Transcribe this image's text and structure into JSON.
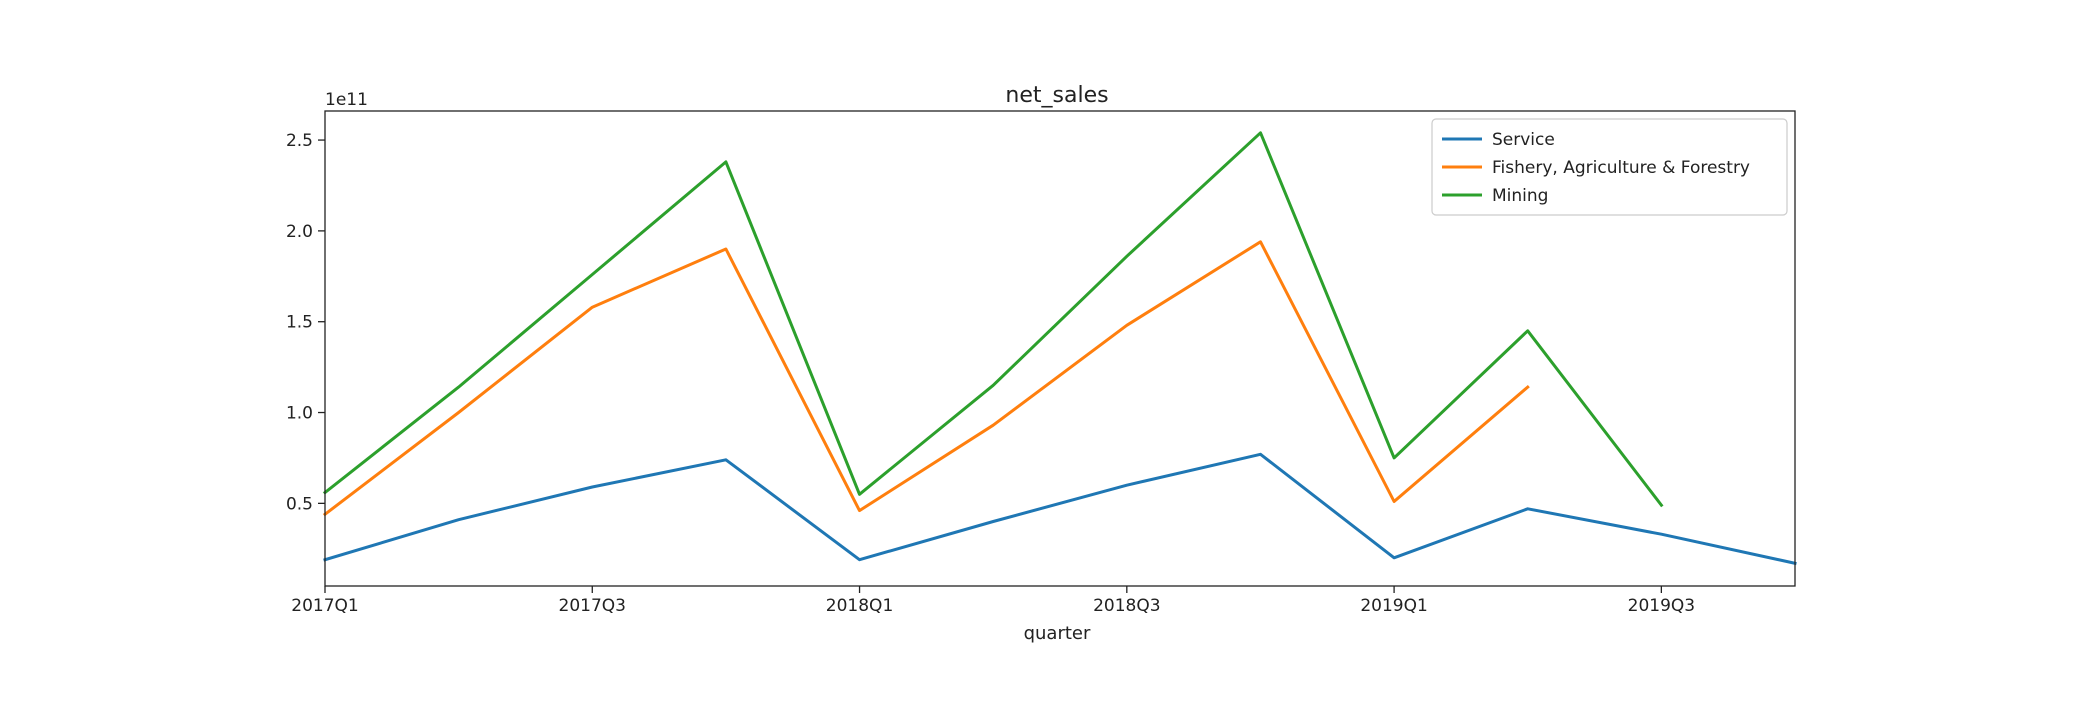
{
  "chart_data": {
    "type": "line",
    "title": "net_sales",
    "xlabel": "quarter",
    "ylabel": "",
    "y_offset_text": "1e11",
    "x": [
      "2017Q1",
      "2017Q2",
      "2017Q3",
      "2017Q4",
      "2018Q1",
      "2018Q2",
      "2018Q3",
      "2018Q4",
      "2019Q1",
      "2019Q2",
      "2019Q3",
      "2019Q4"
    ],
    "x_tick_labels": [
      "2017Q1",
      "2017Q3",
      "2018Q1",
      "2018Q3",
      "2019Q1",
      "2019Q3"
    ],
    "x_tick_index": [
      0,
      2,
      4,
      6,
      8,
      10
    ],
    "ylim": [
      0.045,
      2.66
    ],
    "y_ticks": [
      0.5,
      1.0,
      1.5,
      2.0,
      2.5
    ],
    "y_tick_labels": [
      "0.5",
      "1.0",
      "1.5",
      "2.0",
      "2.5"
    ],
    "legend_position": "top-right",
    "grid": false,
    "series": [
      {
        "name": "Service",
        "color": "#1f77b4",
        "values": [
          0.19,
          0.41,
          0.59,
          0.74,
          0.19,
          0.4,
          0.6,
          0.77,
          0.2,
          0.47,
          0.33,
          0.17
        ]
      },
      {
        "name": "Fishery, Agriculture & Forestry",
        "color": "#ff7f0e",
        "values": [
          0.44,
          1.0,
          1.58,
          1.9,
          0.46,
          0.93,
          1.48,
          1.94,
          0.51,
          1.14,
          null,
          null
        ]
      },
      {
        "name": "Mining",
        "color": "#2ca02c",
        "values": [
          0.56,
          1.14,
          1.76,
          2.38,
          0.55,
          1.15,
          1.86,
          2.54,
          0.75,
          1.45,
          0.49,
          null
        ]
      }
    ]
  }
}
